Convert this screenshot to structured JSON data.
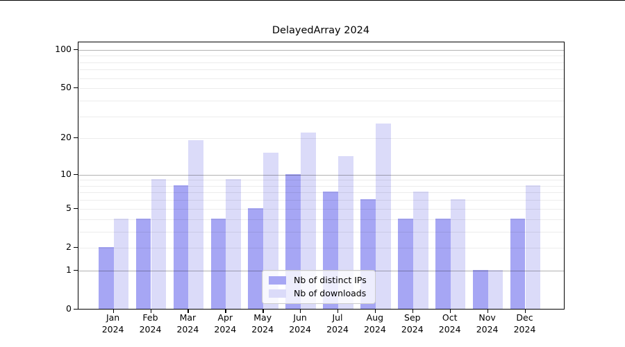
{
  "chart_data": {
    "type": "bar",
    "title": "DelayedArray 2024",
    "scale": "log1p",
    "grid": true,
    "legend_position": "bottom-center",
    "categories": [
      "Jan",
      "Feb",
      "Mar",
      "Apr",
      "May",
      "Jun",
      "Jul",
      "Aug",
      "Sep",
      "Oct",
      "Nov",
      "Dec"
    ],
    "year_label": "2024",
    "series": [
      {
        "name": "Nb of distinct IPs",
        "color": "#a6a6f4",
        "values": [
          2,
          4,
          8,
          4,
          5,
          10,
          7,
          6,
          4,
          4,
          1,
          4
        ]
      },
      {
        "name": "Nb of downloads",
        "color": "#dbdbf9",
        "values": [
          4,
          9,
          19,
          9,
          15,
          22,
          14,
          26,
          7,
          6,
          1,
          8
        ]
      }
    ],
    "y_ticks": [
      0,
      1,
      2,
      5,
      10,
      20,
      50,
      100
    ],
    "y_tick_labels": [
      "0",
      "1",
      "2",
      "5",
      "10",
      "20",
      "50",
      "100"
    ],
    "major_gridlines": [
      1,
      10,
      100
    ],
    "minor_gridlines": [
      2,
      3,
      4,
      5,
      6,
      7,
      8,
      9,
      20,
      30,
      40,
      50,
      60,
      70,
      80,
      90
    ],
    "ylim_top_value": 114
  },
  "colors": {
    "bar_ips": "#a6a6f4",
    "bar_downloads": "#dbdbf9",
    "frame": "#000000",
    "grid_major": "#b3b3b3",
    "grid_minor": "#ececec",
    "legend_border": "#cbcbcb"
  }
}
